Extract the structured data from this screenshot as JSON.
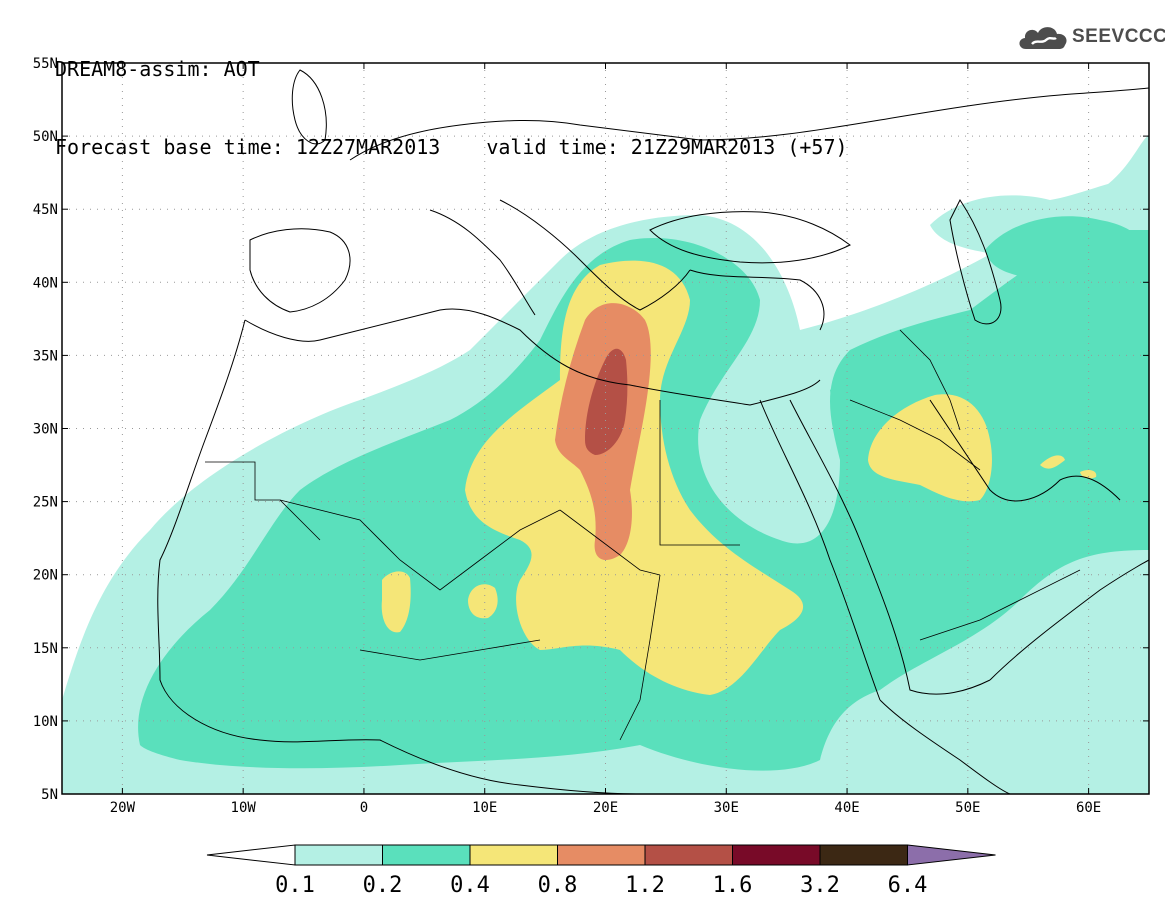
{
  "header": {
    "line1": "DREAM8-assim: AOT",
    "base_time": "Forecast base time: 12Z27MAR2013",
    "valid_time": "valid time: 21Z29MAR2013 (+57)"
  },
  "logo": {
    "text": "SEEVCCC",
    "icon": "cloud-icon",
    "color": "#4d4d4d"
  },
  "map": {
    "lon_range": [
      -25,
      65
    ],
    "lat_range": [
      5,
      55
    ],
    "lat_labels": [
      "55N",
      "50N",
      "45N",
      "40N",
      "35N",
      "30N",
      "25N",
      "20N",
      "15N",
      "10N",
      "5N"
    ],
    "lat_values": [
      55,
      50,
      45,
      40,
      35,
      30,
      25,
      20,
      15,
      10,
      5
    ],
    "lon_labels": [
      "20W",
      "10W",
      "0",
      "10E",
      "20E",
      "30E",
      "40E",
      "50E",
      "60E"
    ],
    "lon_values": [
      -20,
      -10,
      0,
      10,
      20,
      30,
      40,
      50,
      60
    ]
  },
  "colorbar": {
    "labels": [
      "0.1",
      "0.2",
      "0.4",
      "0.8",
      "1.2",
      "1.6",
      "3.2",
      "6.4"
    ],
    "colors": [
      "#ffffff",
      "#b4f0e4",
      "#5ae0bc",
      "#f5e678",
      "#e68c64",
      "#b45046",
      "#780a28",
      "#3c2814",
      "#8c6eaa"
    ],
    "level_colors": {
      "c01": "#b4f0e4",
      "c02": "#5ae0bc",
      "c04": "#f5e678",
      "c08": "#e68c64",
      "c12": "#b45046"
    }
  }
}
